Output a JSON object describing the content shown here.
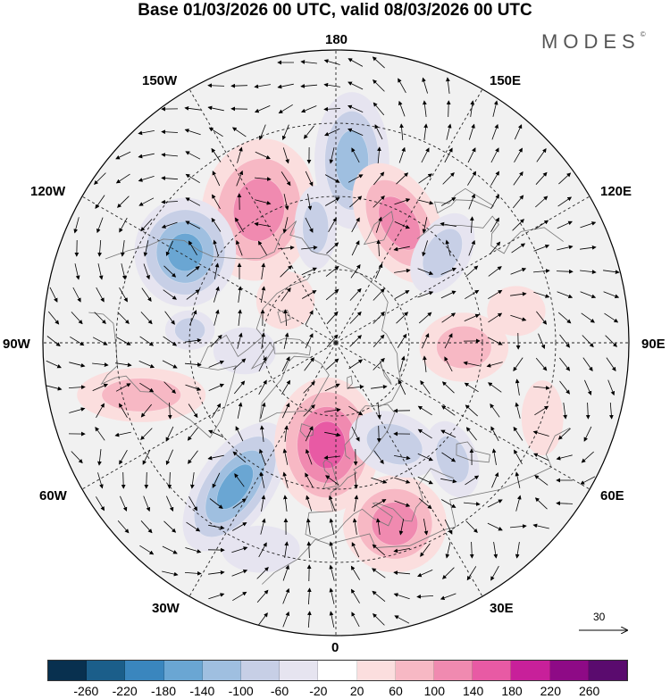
{
  "title": "Base 01/03/2026 00 UTC, valid 08/03/2026 00 UTC",
  "brand": "MODES",
  "brand_mark": "©",
  "longitude_labels": {
    "lon_180": "180",
    "lon_150w": "150W",
    "lon_150e": "150E",
    "lon_120w": "120W",
    "lon_120e": "120E",
    "lon_90w": "90W",
    "lon_90e": "90E",
    "lon_60w": "60W",
    "lon_60e": "60E",
    "lon_30w": "30W",
    "lon_30e": "30E",
    "lon_0": "0"
  },
  "reference_vector": {
    "label": "30"
  },
  "colorbar": {
    "colors": [
      "#08304f",
      "#1b5e8a",
      "#3a86be",
      "#6aa6d3",
      "#9fbfe0",
      "#c7cfe6",
      "#e6e4f0",
      "#ffffff",
      "#fbdede",
      "#f7b8c4",
      "#f08ab0",
      "#e85aa4",
      "#c8209a",
      "#8e0a86",
      "#5a0b6e"
    ],
    "ticks": [
      "-260",
      "-220",
      "-180",
      "-140",
      "-100",
      "-60",
      "-20",
      "20",
      "60",
      "100",
      "140",
      "180",
      "220",
      "260"
    ]
  },
  "map": {
    "projection": "north-polar-stereographic",
    "field": "500 hPa geopotential height anomaly (m)",
    "blobs": [
      {
        "type": "pos",
        "amp": 100,
        "lat": 48,
        "lon": -150,
        "rx": 1.0,
        "ry": 1.25,
        "rot": 10
      },
      {
        "type": "neg",
        "amp": 160,
        "lat": 42,
        "lon": -121,
        "rx": 0.7,
        "ry": 0.75,
        "rot": 0
      },
      {
        "type": "neg",
        "amp": 120,
        "lat": 40,
        "lon": 175,
        "rx": 0.6,
        "ry": 1.1,
        "rot": 0
      },
      {
        "type": "neg",
        "amp": 60,
        "lat": 58,
        "lon": -170,
        "rx": 0.45,
        "ry": 0.9,
        "rot": 0
      },
      {
        "type": "pos",
        "amp": 110,
        "lat": 53,
        "lon": 152,
        "rx": 0.65,
        "ry": 1.1,
        "rot": -30
      },
      {
        "type": "neg",
        "amp": 90,
        "lat": 52,
        "lon": 130,
        "rx": 0.5,
        "ry": 0.8,
        "rot": 30
      },
      {
        "type": "pos",
        "amp": 40,
        "lat": 72,
        "lon": -130,
        "rx": 0.7,
        "ry": 0.7,
        "rot": 0
      },
      {
        "type": "pos",
        "amp": 70,
        "lat": 35,
        "lon": -75,
        "rx": 1.3,
        "ry": 0.55,
        "rot": 0
      },
      {
        "type": "neg",
        "amp": 70,
        "lat": 50,
        "lon": -95,
        "rx": 0.5,
        "ry": 0.4,
        "rot": 0
      },
      {
        "type": "neg",
        "amp": 140,
        "lat": 42,
        "lon": -35,
        "rx": 0.55,
        "ry": 1.1,
        "rot": 35
      },
      {
        "type": "pos",
        "amp": 170,
        "lat": 62,
        "lon": -5,
        "rx": 0.7,
        "ry": 0.9,
        "rot": 0
      },
      {
        "type": "pos",
        "amp": 130,
        "lat": 38,
        "lon": 18,
        "rx": 0.8,
        "ry": 0.75,
        "rot": 0
      },
      {
        "type": "neg",
        "amp": 80,
        "lat": 58,
        "lon": 30,
        "rx": 0.9,
        "ry": 0.6,
        "rot": 20
      },
      {
        "type": "neg",
        "amp": 70,
        "lat": 45,
        "lon": 45,
        "rx": 0.5,
        "ry": 0.8,
        "rot": -20
      },
      {
        "type": "pos",
        "amp": 70,
        "lat": 55,
        "lon": 88,
        "rx": 0.9,
        "ry": 0.7,
        "rot": 0
      },
      {
        "type": "pos",
        "amp": 40,
        "lat": 30,
        "lon": 70,
        "rx": 0.5,
        "ry": 0.9,
        "rot": 0
      },
      {
        "type": "neg",
        "amp": 30,
        "lat": 30,
        "lon": -20,
        "rx": 1.0,
        "ry": 0.6,
        "rot": 0
      },
      {
        "type": "neg",
        "amp": 30,
        "lat": 65,
        "lon": -85,
        "rx": 0.8,
        "ry": 0.6,
        "rot": 0
      },
      {
        "type": "pos",
        "amp": 40,
        "lat": 40,
        "lon": 100,
        "rx": 0.7,
        "ry": 0.6,
        "rot": 0
      }
    ]
  }
}
